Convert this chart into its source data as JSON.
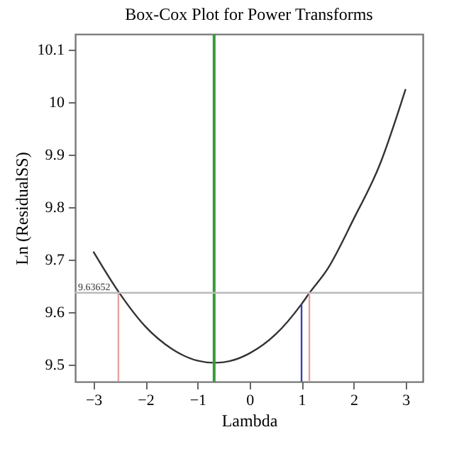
{
  "chart_data": {
    "type": "line",
    "title": "Box-Cox Plot for Power Transforms",
    "xlabel": "Lambda",
    "ylabel": "Ln (ResidualSS)",
    "xlim": [
      -3.35,
      3.33
    ],
    "ylim": [
      9.467,
      10.13
    ],
    "xticks": [
      -3,
      -2,
      -1,
      0,
      1,
      2,
      3
    ],
    "yticks": [
      9.5,
      9.6,
      9.7,
      9.8,
      9.9,
      10,
      10.1
    ],
    "grid": false,
    "marker": "none",
    "line_style": "solid",
    "series": [
      {
        "color": "#333333",
        "x": [
          -3,
          -2.5,
          -2,
          -1.5,
          -1,
          -0.68,
          -0.5,
          0,
          0.5,
          1,
          1.15,
          1.5,
          2,
          2.5,
          3
        ],
        "values": [
          9.715,
          9.636,
          9.572,
          9.53,
          9.507,
          9.503,
          9.504,
          9.521,
          9.557,
          9.615,
          9.636,
          9.682,
          9.777,
          9.88,
          10.025
        ]
      },
      {
        "color": "#e8a0a0",
        "x": [
          -2.52,
          -2.52
        ],
        "values": [
          9.467,
          9.637
        ]
      },
      {
        "color": "#e8a0a0",
        "x": [
          1.15,
          1.15
        ],
        "values": [
          9.467,
          9.637
        ]
      },
      {
        "color": "#4040b0",
        "x": [
          1,
          1
        ],
        "values": [
          9.467,
          9.615
        ]
      }
    ],
    "ref_lines": [
      {
        "axis": "x",
        "value": -0.68,
        "color": "#3a9a3a"
      },
      {
        "axis": "y",
        "value": 9.63652,
        "label": "9.63652",
        "color": "#bbbbbb"
      }
    ]
  }
}
